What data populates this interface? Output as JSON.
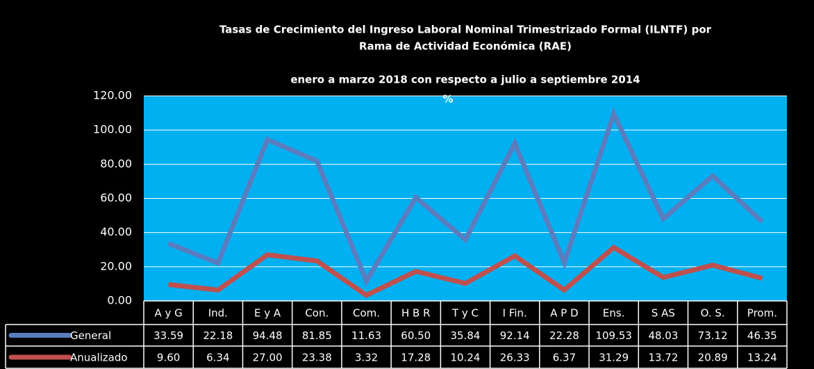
{
  "chart_data": {
    "type": "line",
    "title": [
      "Tasas de Crecimiento del Ingreso Laboral Nominal Trimestrizado Formal (ILNTF) por",
      "Rama de Actividad Económica (RAE)",
      "enero a marzo 2018 con respecto a  julio a septiembre 2014"
    ],
    "subtitle": "%",
    "categories": [
      "A y G",
      "Ind.",
      "E y A",
      "Con.",
      "Com.",
      "H B R",
      "T y C",
      "I Fin.",
      "A P D",
      "Ens.",
      "S AS",
      "O. S.",
      "Prom."
    ],
    "series": [
      {
        "name": "General",
        "color": "#5a7dc0",
        "values": [
          33.59,
          22.18,
          94.48,
          81.85,
          11.63,
          60.5,
          35.84,
          92.14,
          22.28,
          109.53,
          48.03,
          73.12,
          46.35
        ],
        "value_labels": [
          "33.59",
          "22.18",
          "94.48",
          "81.85",
          "11.63",
          "60.50",
          "35.84",
          "92.14",
          "22.28",
          "109.53",
          "48.03",
          "73.12",
          "46.35"
        ]
      },
      {
        "name": "Anualizado",
        "color": "#c0504d",
        "values": [
          9.6,
          6.34,
          27.0,
          23.38,
          3.32,
          17.28,
          10.24,
          26.33,
          6.37,
          31.29,
          13.72,
          20.89,
          13.24
        ],
        "value_labels": [
          "9.60",
          "6.34",
          "27.00",
          "23.38",
          "3.32",
          "17.28",
          "10.24",
          "26.33",
          "6.37",
          "31.29",
          "13.72",
          "20.89",
          "13.24"
        ]
      }
    ],
    "ylim": [
      0,
      120
    ],
    "yticks": [
      {
        "value": 0,
        "label": "0.00"
      },
      {
        "value": 20,
        "label": "20.00"
      },
      {
        "value": 40,
        "label": "40.00"
      },
      {
        "value": 60,
        "label": "60.00"
      },
      {
        "value": 80,
        "label": "80.00"
      },
      {
        "value": 100,
        "label": "100.00"
      },
      {
        "value": 120,
        "label": "120.00"
      }
    ],
    "grid": true,
    "plot_color": "#00b0f0"
  }
}
